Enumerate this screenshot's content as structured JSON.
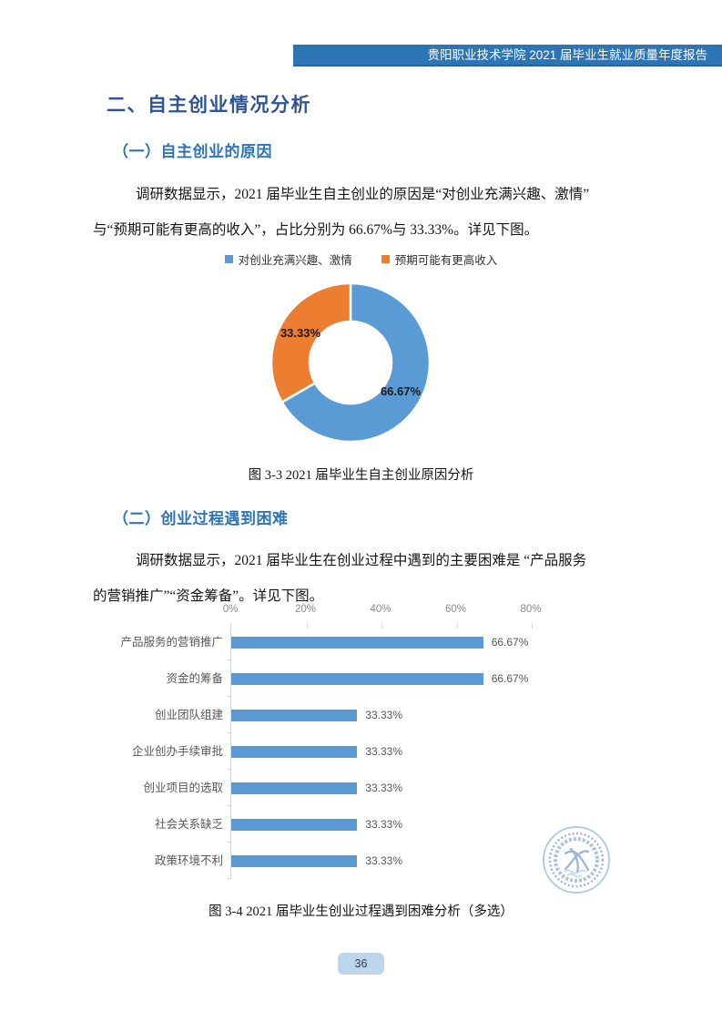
{
  "header": {
    "title": "贵阳职业技术学院 2021 届毕业生就业质量年度报告"
  },
  "section": {
    "title": "二、自主创业情况分析"
  },
  "subsection1": {
    "title": "（一）自主创业的原因",
    "paragraph_line1": "调研数据显示，2021 届毕业生自主创业的原因是“对创业充满兴趣、激情”",
    "paragraph_line2": "与“预期可能有更高的收入”，占比分别为 66.67%与 33.33%。详见下图。",
    "figure_caption": "图 3-3 2021 届毕业生自主创业原因分析"
  },
  "subsection2": {
    "title": "（二）创业过程遇到困难",
    "paragraph_line1": "调研数据显示，2021 届毕业生在创业过程中遇到的主要困难是 “产品服务",
    "paragraph_line2": "的营销推广”“资金筹备”。详见下图。",
    "figure_caption": "图 3-4 2021 届毕业生创业过程遇到困难分析（多选）"
  },
  "page": {
    "number": "36"
  },
  "colors": {
    "banner_blue": "#2E75B6",
    "heading1_blue": "#2F5496",
    "heading2_blue": "#2E74B5",
    "bar_blue": "#5B9BD5",
    "pie_blue": "#5B9BD5",
    "pie_orange": "#ED7D31",
    "badge_blue": "#BCD6ED"
  },
  "watermark": {
    "name": "college-seal"
  },
  "chart_data": [
    {
      "type": "pie",
      "subtype": "donut",
      "legend_position": "top",
      "labels": [
        "对创业充满兴趣、激情",
        "预期可能有更高收入"
      ],
      "values": [
        66.67,
        33.33
      ],
      "value_labels": [
        "66.67%",
        "33.33%"
      ],
      "colors": [
        "#5B9BD5",
        "#ED7D31"
      ]
    },
    {
      "type": "bar",
      "orientation": "horizontal",
      "categories": [
        "产品服务的营销推广",
        "资金的筹备",
        "创业团队组建",
        "企业创办手续审批",
        "创业项目的选取",
        "社会关系缺乏",
        "政策环境不利"
      ],
      "values": [
        66.67,
        66.67,
        33.33,
        33.33,
        33.33,
        33.33,
        33.33
      ],
      "value_labels": [
        "66.67%",
        "66.67%",
        "33.33%",
        "33.33%",
        "33.33%",
        "33.33%",
        "33.33%"
      ],
      "axis_ticks": [
        "0%",
        "20%",
        "40%",
        "60%",
        "80%"
      ],
      "xlim": [
        0,
        80
      ],
      "bar_color": "#5B9BD5",
      "grid": false,
      "axis_position": "top"
    }
  ]
}
